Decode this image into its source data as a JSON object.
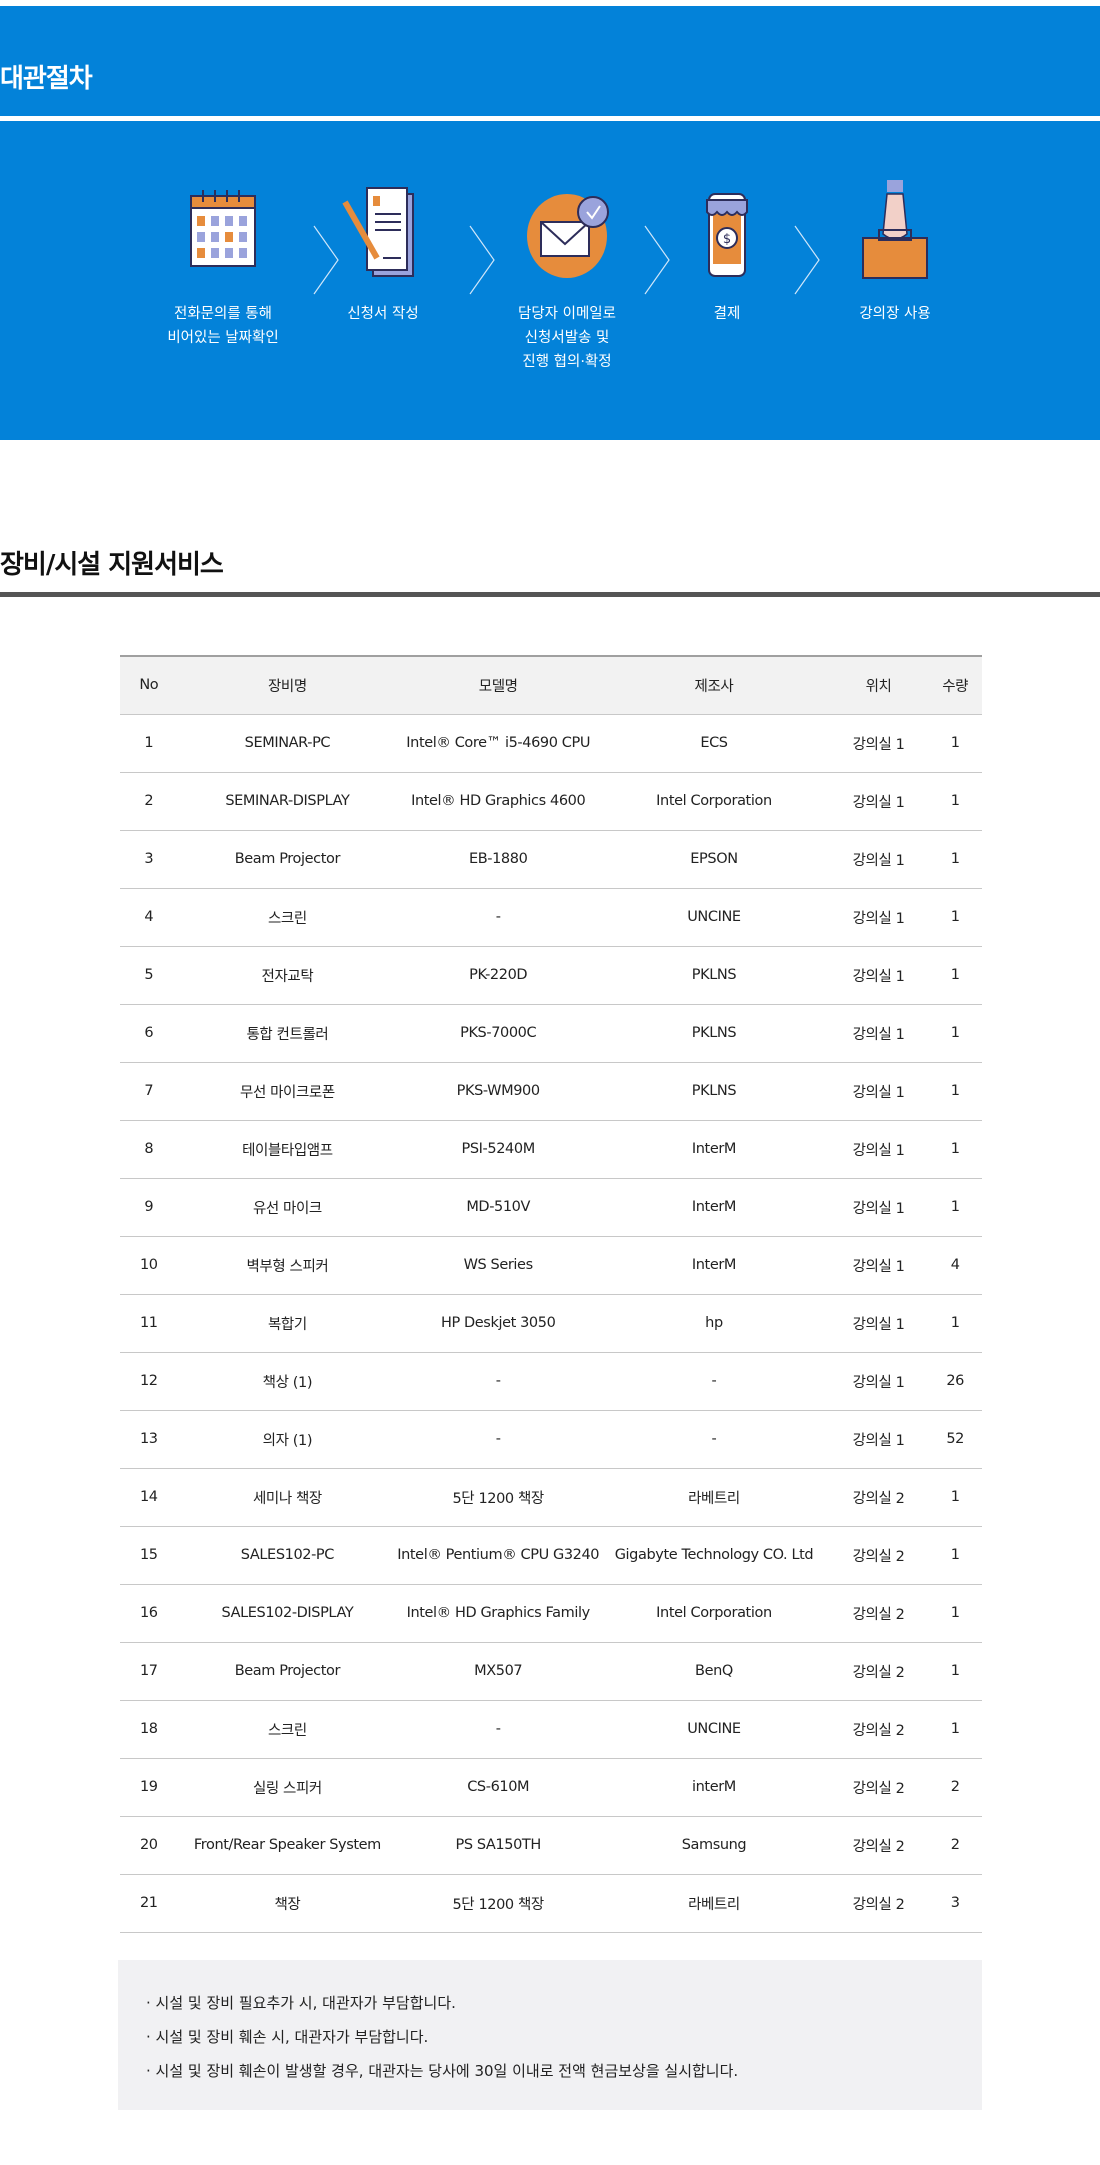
{
  "procedure": {
    "title": "대관절차",
    "steps": [
      {
        "icon": "calendar-icon",
        "label": "전화문의를 통해\n비어있는 날짜확인"
      },
      {
        "icon": "document-pen-icon",
        "label": "신청서 작성"
      },
      {
        "icon": "email-check-icon",
        "label": "담당자 이메일로\n신청서발송 및\n진행 협의·확정"
      },
      {
        "icon": "mobile-payment-icon",
        "label": "결제"
      },
      {
        "icon": "briefcase-hand-icon",
        "label": "강의장 사용"
      }
    ]
  },
  "equipment": {
    "title": "장비/시설 지원서비스",
    "columns": [
      "No",
      "장비명",
      "모델명",
      "제조사",
      "위치",
      "수량"
    ],
    "rows": [
      [
        "1",
        "SEMINAR-PC",
        "Intel® Core™ i5-4690 CPU",
        "ECS",
        "강의실 1",
        "1"
      ],
      [
        "2",
        "SEMINAR-DISPLAY",
        "Intel® HD Graphics 4600",
        "Intel Corporation",
        "강의실 1",
        "1"
      ],
      [
        "3",
        "Beam Projector",
        "EB-1880",
        "EPSON",
        "강의실 1",
        "1"
      ],
      [
        "4",
        "스크린",
        "-",
        "UNCINE",
        "강의실 1",
        "1"
      ],
      [
        "5",
        "전자교탁",
        "PK-220D",
        "PKLNS",
        "강의실 1",
        "1"
      ],
      [
        "6",
        "통합 컨트롤러",
        "PKS-7000C",
        "PKLNS",
        "강의실 1",
        "1"
      ],
      [
        "7",
        "무선 마이크로폰",
        "PKS-WM900",
        "PKLNS",
        "강의실 1",
        "1"
      ],
      [
        "8",
        "테이블타입앰프",
        "PSI-5240M",
        "InterM",
        "강의실 1",
        "1"
      ],
      [
        "9",
        "유선 마이크",
        "MD-510V",
        "InterM",
        "강의실 1",
        "1"
      ],
      [
        "10",
        "벽부형 스피커",
        "WS Series",
        "InterM",
        "강의실 1",
        "4"
      ],
      [
        "11",
        "복합기",
        "HP Deskjet 3050",
        "hp",
        "강의실 1",
        "1"
      ],
      [
        "12",
        "책상 (1)",
        "-",
        "-",
        "강의실 1",
        "26"
      ],
      [
        "13",
        "의자 (1)",
        "-",
        "-",
        "강의실 1",
        "52"
      ],
      [
        "14",
        "세미나 책장",
        "5단 1200 책장",
        "라베트리",
        "강의실 2",
        "1"
      ],
      [
        "15",
        "SALES102-PC",
        "Intel® Pentium® CPU G3240",
        "Gigabyte Technology CO. Ltd",
        "강의실 2",
        "1"
      ],
      [
        "16",
        "SALES102-DISPLAY",
        "Intel® HD Graphics Family",
        "Intel Corporation",
        "강의실 2",
        "1"
      ],
      [
        "17",
        "Beam Projector",
        "MX507",
        "BenQ",
        "강의실 2",
        "1"
      ],
      [
        "18",
        "스크린",
        "-",
        "UNCINE",
        "강의실 2",
        "1"
      ],
      [
        "19",
        "실링 스피커",
        "CS-610M",
        "interM",
        "강의실 2",
        "2"
      ],
      [
        "20",
        "Front/Rear Speaker System",
        "PS SA150TH",
        "Samsung",
        "강의실 2",
        "2"
      ],
      [
        "21",
        "책장",
        "5단 1200 책장",
        "라베트리",
        "강의실 2",
        "3"
      ]
    ]
  },
  "notes": [
    "· 시설 및 장비 필요추가 시, 대관자가 부담합니다.",
    "· 시설 및 장비 훼손 시, 대관자가 부담합니다.",
    "· 시설 및 장비 훼손이 발생할 경우, 대관자는 당사에 30일 이내로 전액 현금보상을 실시합니다."
  ],
  "colors": {
    "banner": "#0382d9",
    "accent_orange": "#e68c3c",
    "icon_purple": "#9aa3dc"
  }
}
